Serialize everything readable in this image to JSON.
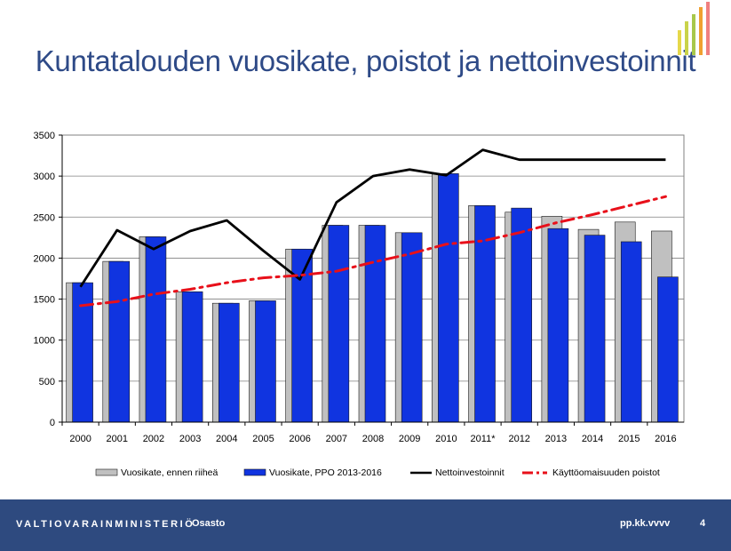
{
  "slide": {
    "title": "Kuntatalouden vuosikate, poistot ja nettoinvestoinnit"
  },
  "footer": {
    "ministry": "VALTIOVARAINMINISTERIÖ",
    "department": "Osasto",
    "date": "pp.kk.vvvv",
    "page": "4"
  },
  "logo": {
    "colors": [
      "#e6d84a",
      "#c9d34a",
      "#a8c84a",
      "#f0a030",
      "#f08080"
    ]
  },
  "chart_data": {
    "type": "bar",
    "categories": [
      "2000",
      "2001",
      "2002",
      "2003",
      "2004",
      "2005",
      "2006",
      "2007",
      "2008",
      "2009",
      "2010",
      "2011*",
      "2012",
      "2013",
      "2014",
      "2015",
      "2016"
    ],
    "ylim": [
      0,
      3500
    ],
    "yticks": [
      0,
      500,
      1000,
      1500,
      2000,
      2500,
      3000,
      3500
    ],
    "grid": true,
    "legend_position": "bottom",
    "series": [
      {
        "name": "Vuosikate, ennen riiheä",
        "kind": "bar",
        "color": "#c0c0c0",
        "values": [
          1700,
          1960,
          2260,
          1590,
          1450,
          1480,
          2110,
          2400,
          2400,
          2310,
          3030,
          2640,
          2560,
          2510,
          2350,
          2440,
          2330
        ]
      },
      {
        "name": "Vuosikate, PPO 2013-2016",
        "kind": "bar",
        "color": "#1034e0",
        "values": [
          1700,
          1960,
          2260,
          1590,
          1450,
          1480,
          2110,
          2400,
          2400,
          2310,
          3030,
          2640,
          2610,
          2360,
          2280,
          2200,
          1770
        ]
      },
      {
        "name": "Nettoinvestoinnit",
        "kind": "line",
        "color": "#000000",
        "values": [
          1650,
          2340,
          2110,
          2330,
          2460,
          2090,
          1740,
          2680,
          3000,
          3080,
          3010,
          3320,
          3200,
          3200,
          3200,
          3200,
          3200
        ]
      },
      {
        "name": "Käyttöomaisuuden poistot",
        "kind": "dashdot",
        "color": "#e8101a",
        "values": [
          1420,
          1470,
          1560,
          1620,
          1700,
          1760,
          1790,
          1840,
          1950,
          2050,
          2170,
          2210,
          2310,
          2430,
          2530,
          2640,
          2750
        ]
      }
    ]
  }
}
